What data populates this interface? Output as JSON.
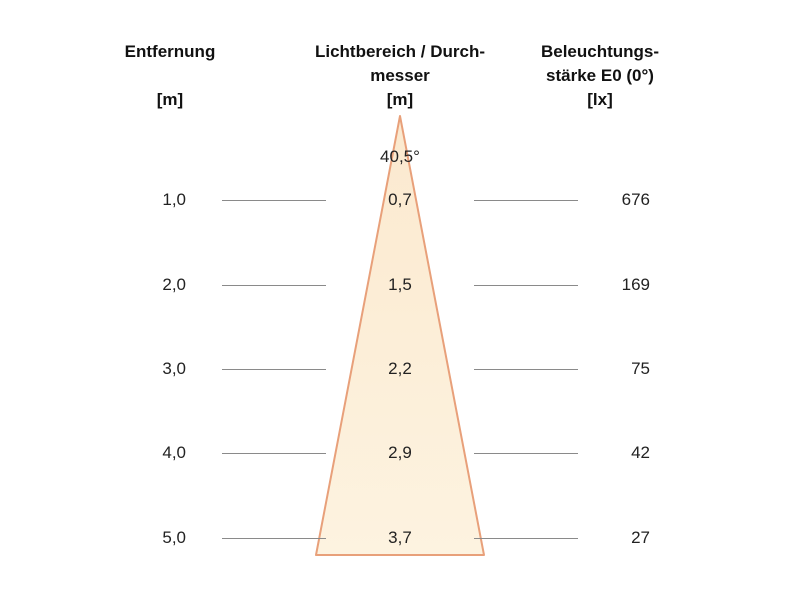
{
  "headers": {
    "distance": {
      "lines": [
        "Entfernung",
        ""
      ],
      "unit": "[m]"
    },
    "diameter": {
      "lines": [
        "Lichtbereich / Durch-",
        "messer"
      ],
      "unit": "[m]"
    },
    "illuminance": {
      "lines": [
        "Beleuchtungs-",
        "stärke E0 (0°)"
      ],
      "unit": "[lx]"
    }
  },
  "beam_angle": "40,5°",
  "rows": [
    {
      "distance": "1,0",
      "diameter": "0,7",
      "lux": "676"
    },
    {
      "distance": "2,0",
      "diameter": "1,5",
      "lux": "169"
    },
    {
      "distance": "3,0",
      "diameter": "2,2",
      "lux": "75"
    },
    {
      "distance": "4,0",
      "diameter": "2,9",
      "lux": "42"
    },
    {
      "distance": "5,0",
      "diameter": "3,7",
      "lux": "27"
    }
  ],
  "colors": {
    "cone_fill_top": "#fbe9cf",
    "cone_fill_bottom": "#fdf3e0",
    "cone_edge": "#e8a07a",
    "guide_line": "#8a8a8a"
  }
}
